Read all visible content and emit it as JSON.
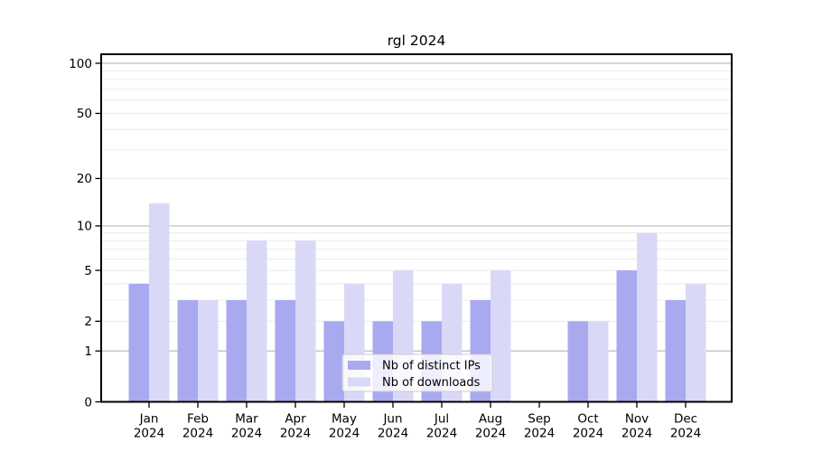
{
  "chart_data": {
    "type": "bar",
    "title": "rgl 2024",
    "year": "2024",
    "months": [
      "Jan",
      "Feb",
      "Mar",
      "Apr",
      "May",
      "Jun",
      "Jul",
      "Aug",
      "Sep",
      "Oct",
      "Nov",
      "Dec"
    ],
    "categories": [
      "Jan 2024",
      "Feb 2024",
      "Mar 2024",
      "Apr 2024",
      "May 2024",
      "Jun 2024",
      "Jul 2024",
      "Aug 2024",
      "Sep 2024",
      "Oct 2024",
      "Nov 2024",
      "Dec 2024"
    ],
    "series": [
      {
        "name": "Nb of distinct IPs",
        "color": "#a9a9f0",
        "values": [
          4,
          3,
          3,
          3,
          2,
          2,
          2,
          3,
          0,
          2,
          5,
          3
        ]
      },
      {
        "name": "Nb of downloads",
        "color": "#d9d9f7",
        "values": [
          14,
          3,
          8,
          8,
          4,
          5,
          4,
          5,
          0,
          2,
          9,
          4
        ]
      }
    ],
    "scale": "log10(1+x)",
    "ylim": [
      0,
      113
    ],
    "yticks": [
      0,
      1,
      2,
      5,
      10,
      20,
      50,
      100
    ],
    "gridlines": {
      "major": [
        1,
        10,
        100
      ],
      "minor": [
        2,
        3,
        4,
        5,
        6,
        7,
        8,
        9,
        20,
        30,
        40,
        50,
        60,
        70,
        80,
        90
      ]
    },
    "legend": {
      "position": "bottom-center",
      "entries": [
        "Nb of distinct IPs",
        "Nb of downloads"
      ]
    },
    "xlabel": "",
    "ylabel": ""
  },
  "colors": {
    "bar_dark": "#a9a9f0",
    "bar_light": "#d9d9f7",
    "grid_major": "#bbbbbb",
    "grid_minor": "#ececec",
    "axis": "#000000",
    "tick": "#000000",
    "text": "#000000",
    "legend_bg": "rgba(255,255,255,0.8)",
    "legend_border": "#cccccc",
    "background": "#ffffff"
  }
}
